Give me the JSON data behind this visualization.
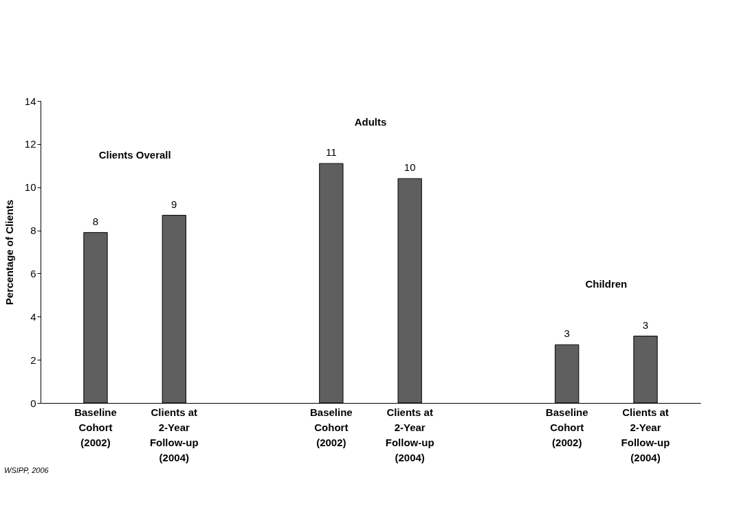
{
  "chart_data": {
    "type": "bar",
    "ylabel": "Percentage of Clients",
    "categories": [
      "Baseline Cohort (2002)",
      "Clients at 2-Year Follow-up (2004)",
      null,
      "Baseline Cohort (2002)",
      "Clients at 2-Year Follow-up (2004)",
      null,
      "Baseline Cohort (2002)",
      "Clients at 2-Year Follow-up (2004)"
    ],
    "values": [
      7.9,
      8.7,
      null,
      11.1,
      10.4,
      null,
      2.7,
      3.1
    ],
    "value_labels": [
      "8",
      "9",
      null,
      "11",
      "10",
      null,
      "3",
      "3"
    ],
    "color": "#5f5f5f",
    "ylim": [
      0,
      14
    ],
    "yticks": [
      0,
      2,
      4,
      6,
      8,
      10,
      12,
      14
    ],
    "grid": false,
    "annotations": [
      "Clients Overall",
      "Adults",
      "Children",
      "WSIPP, 2006"
    ]
  }
}
